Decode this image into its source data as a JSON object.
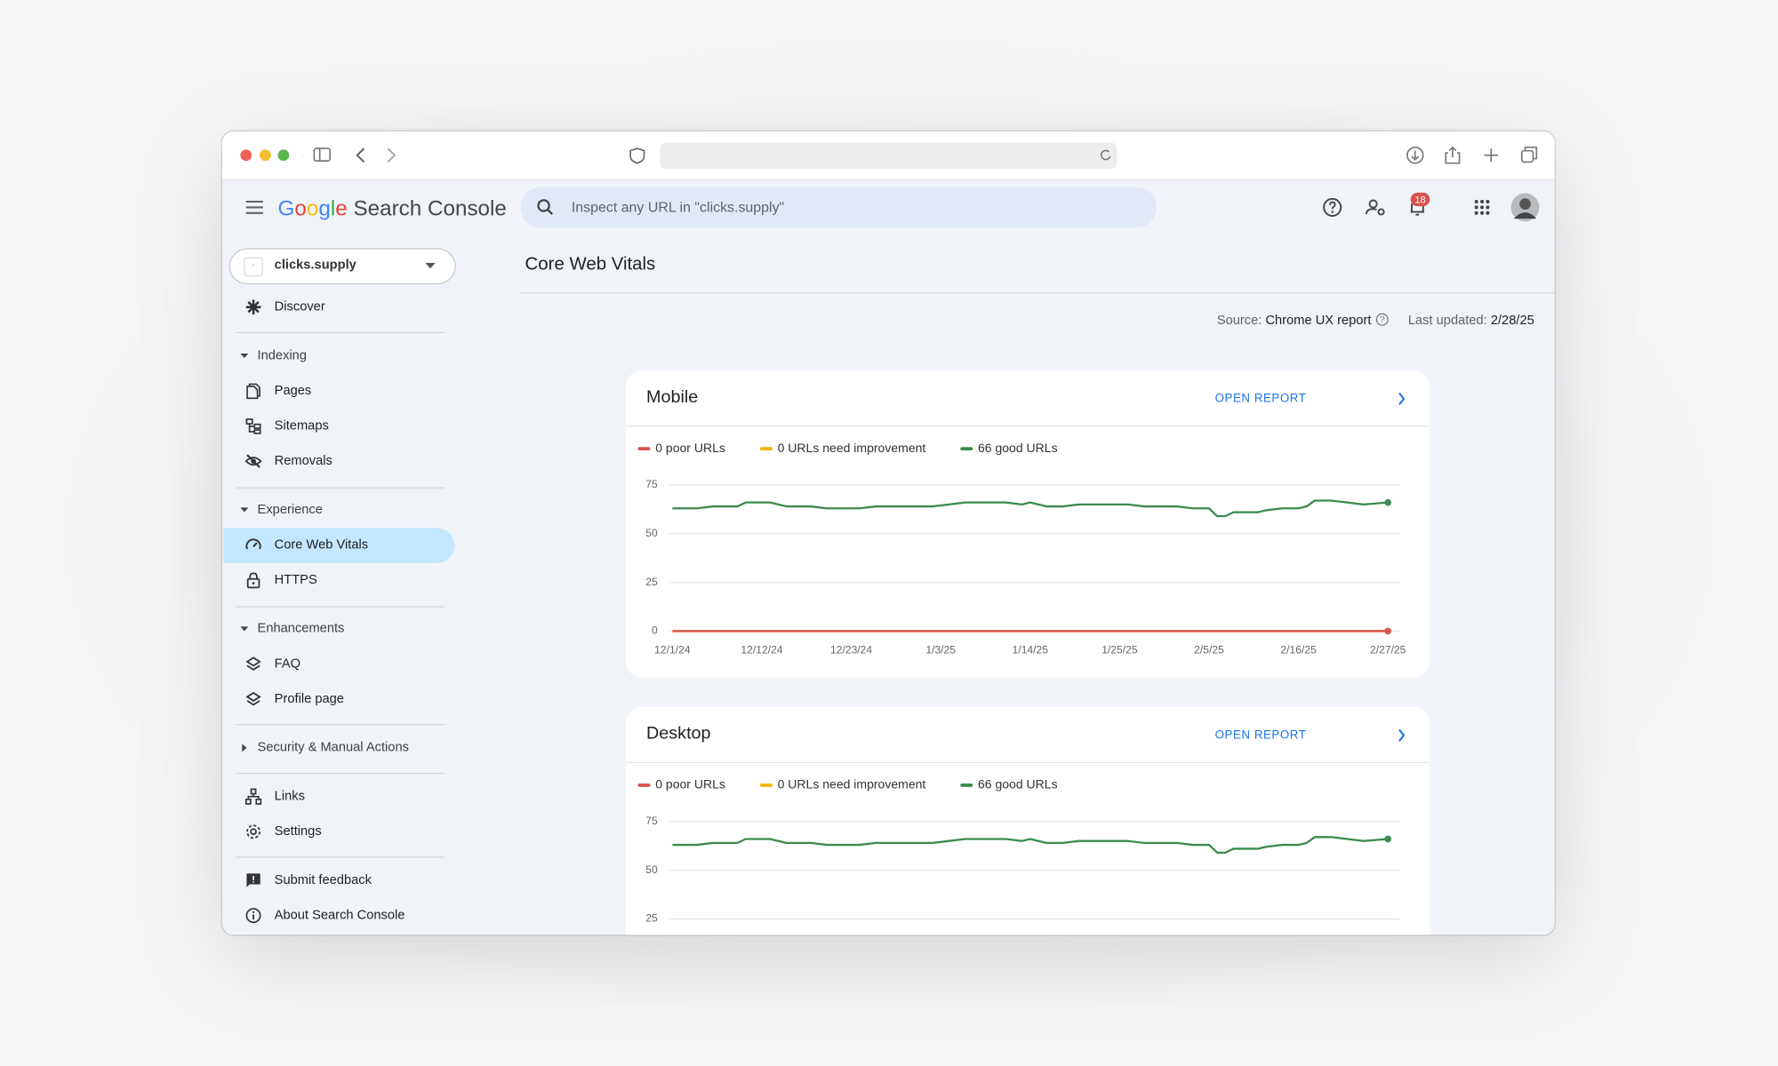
{
  "header": {
    "logo": "Google",
    "product": "Search Console",
    "search_placeholder": "Inspect any URL in \"clicks.supply\"",
    "notification_count": "18"
  },
  "sidebar": {
    "property": "clicks.supply",
    "items": [
      "Discover",
      "Indexing",
      "Pages",
      "Sitemaps",
      "Removals",
      "Experience",
      "Core Web Vitals",
      "HTTPS",
      "Enhancements",
      "FAQ",
      "Profile page",
      "Security & Manual Actions",
      "Links",
      "Settings",
      "Submit feedback",
      "About Search Console"
    ]
  },
  "main": {
    "title": "Core Web Vitals",
    "source_label": "Source:",
    "source": "Chrome UX report",
    "updated_label": "Last updated:",
    "updated": "2/28/25"
  },
  "chart_data": [
    {
      "type": "line",
      "title": "Mobile",
      "link": "OPEN REPORT",
      "x": [
        "12/1/24",
        "12/4/24",
        "12/6/24",
        "12/9/24",
        "12/10/24",
        "12/13/24",
        "12/15/24",
        "12/18/24",
        "12/20/24",
        "12/24/24",
        "12/26/24",
        "12/30/24",
        "1/2/25",
        "1/4/25",
        "1/6/25",
        "1/11/25",
        "1/13/25",
        "1/14/25",
        "1/16/25",
        "1/18/25",
        "1/20/25",
        "1/26/25",
        "1/28/25",
        "2/1/25",
        "2/3/25",
        "2/5/25",
        "2/6/25",
        "2/7/25",
        "2/8/25",
        "2/11/25",
        "2/12/25",
        "2/14/25",
        "2/16/25",
        "2/17/25",
        "2/18/25",
        "2/20/25",
        "2/22/25",
        "2/24/25",
        "2/27/25"
      ],
      "xlim": [
        "12/1/24",
        "2/27/25"
      ],
      "xticks": [
        "12/1/24",
        "12/12/24",
        "12/23/24",
        "1/3/25",
        "1/14/25",
        "1/25/25",
        "2/5/25",
        "2/16/25",
        "2/27/25"
      ],
      "ylim": [
        0,
        75
      ],
      "yticks": [
        0,
        25,
        50,
        75
      ],
      "grid": true,
      "series": [
        {
          "name": "0 poor URLs",
          "color": "#d9534f",
          "values": [
            0,
            0,
            0,
            0,
            0,
            0,
            0,
            0,
            0,
            0,
            0,
            0,
            0,
            0,
            0,
            0,
            0,
            0,
            0,
            0,
            0,
            0,
            0,
            0,
            0,
            0,
            0,
            0,
            0,
            0,
            0,
            0,
            0,
            0,
            0,
            0,
            0,
            0,
            0
          ]
        },
        {
          "name": "0 URLs need improvement",
          "color": "#f4b400",
          "values": [
            0,
            0,
            0,
            0,
            0,
            0,
            0,
            0,
            0,
            0,
            0,
            0,
            0,
            0,
            0,
            0,
            0,
            0,
            0,
            0,
            0,
            0,
            0,
            0,
            0,
            0,
            0,
            0,
            0,
            0,
            0,
            0,
            0,
            0,
            0,
            0,
            0,
            0,
            0
          ]
        },
        {
          "name": "66 good URLs",
          "color": "#3c8a50",
          "values": [
            63,
            63,
            64,
            64,
            66,
            66,
            64,
            64,
            63,
            63,
            64,
            64,
            64,
            65,
            66,
            66,
            65,
            66,
            64,
            64,
            65,
            65,
            64,
            64,
            63,
            63,
            59,
            59,
            61,
            61,
            62,
            63,
            63,
            64,
            67,
            67,
            66,
            65,
            66
          ]
        }
      ]
    },
    {
      "type": "line",
      "title": "Desktop",
      "link": "OPEN REPORT",
      "x": [
        "12/1/24",
        "12/4/24",
        "12/6/24",
        "12/9/24",
        "12/10/24",
        "12/13/24",
        "12/15/24",
        "12/18/24",
        "12/20/24",
        "12/24/24",
        "12/26/24",
        "12/30/24",
        "1/2/25",
        "1/4/25",
        "1/6/25",
        "1/11/25",
        "1/13/25",
        "1/14/25",
        "1/16/25",
        "1/18/25",
        "1/20/25",
        "1/26/25",
        "1/28/25",
        "2/1/25",
        "2/3/25",
        "2/5/25",
        "2/6/25",
        "2/7/25",
        "2/8/25",
        "2/11/25",
        "2/12/25",
        "2/14/25",
        "2/16/25",
        "2/17/25",
        "2/18/25",
        "2/20/25",
        "2/22/25",
        "2/24/25",
        "2/27/25"
      ],
      "xlim": [
        "12/1/24",
        "2/27/25"
      ],
      "ylim": [
        0,
        75
      ],
      "yticks": [
        25,
        50,
        75
      ],
      "grid": true,
      "series": [
        {
          "name": "0 poor URLs",
          "color": "#d9534f"
        },
        {
          "name": "0 URLs need improvement",
          "color": "#f4b400"
        },
        {
          "name": "66 good URLs",
          "color": "#3c8a50",
          "values": [
            63,
            63,
            64,
            64,
            66,
            66,
            64,
            64,
            63,
            63,
            64,
            64,
            64,
            65,
            66,
            66,
            65,
            66,
            64,
            64,
            65,
            65,
            64,
            64,
            63,
            63,
            59,
            59,
            61,
            61,
            62,
            63,
            63,
            64,
            67,
            67,
            66,
            65,
            66
          ]
        }
      ]
    }
  ]
}
